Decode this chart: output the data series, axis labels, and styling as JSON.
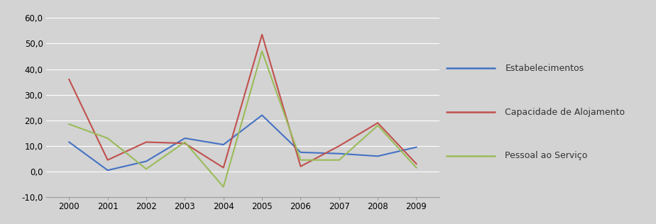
{
  "years": [
    2000,
    2001,
    2002,
    2003,
    2004,
    2005,
    2006,
    2007,
    2008,
    2009
  ],
  "estabelecimentos": [
    11.5,
    0.5,
    4.0,
    13.0,
    10.5,
    22.0,
    7.5,
    7.0,
    6.0,
    9.5
  ],
  "capacidade_alojamento": [
    36.0,
    4.5,
    11.5,
    11.0,
    1.5,
    53.5,
    2.0,
    10.0,
    19.0,
    3.0
  ],
  "pessoal_servico": [
    18.5,
    13.0,
    1.0,
    11.5,
    -6.0,
    47.0,
    4.5,
    4.5,
    18.0,
    1.5
  ],
  "color_estabelecimentos": "#4472C4",
  "color_capacidade": "#C0504D",
  "color_pessoal": "#9BBB59",
  "legend_labels": [
    "Estabelecimentos",
    "Capacidade de Alojamento",
    "Pessoal ao Serviço"
  ],
  "ylim": [
    -10,
    60
  ],
  "yticks": [
    -10,
    0,
    10,
    20,
    30,
    40,
    50,
    60
  ],
  "background_color": "#D3D3D3",
  "grid_color": "#FFFFFF",
  "figsize": [
    9.24,
    3.16
  ],
  "dpi": 100
}
